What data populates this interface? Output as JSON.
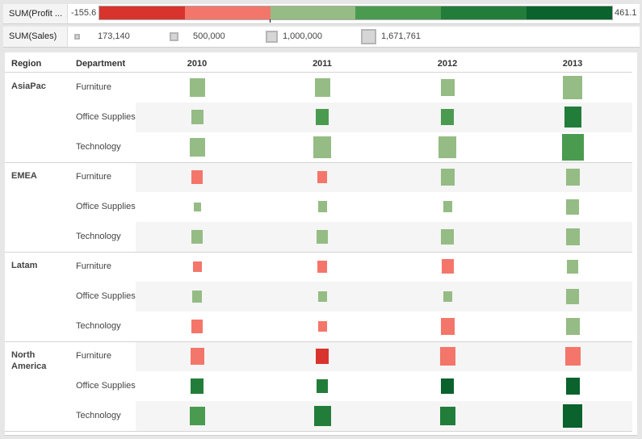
{
  "color_legend": {
    "label": "SUM(Profit ...",
    "min": "-155.6",
    "max": "461.1",
    "segments": [
      "#d8342d",
      "#f4766a",
      "#95bc84",
      "#4a9b50",
      "#237d3a",
      "#0a622c"
    ]
  },
  "size_legend": {
    "label": "SUM(Sales)",
    "items": [
      {
        "label": "173,140",
        "size": 7
      },
      {
        "label": "500,000",
        "size": 11
      },
      {
        "label": "1,000,000",
        "size": 15
      },
      {
        "label": "1,671,761",
        "size": 19
      }
    ]
  },
  "table": {
    "headers": {
      "region": "Region",
      "department": "Department"
    },
    "years": [
      "2010",
      "2011",
      "2012",
      "2013"
    ],
    "regions": [
      {
        "name": "AsiaPac",
        "departments": [
          "Furniture",
          "Office Supplies",
          "Technology"
        ]
      },
      {
        "name": "EMEA",
        "departments": [
          "Furniture",
          "Office Supplies",
          "Technology"
        ]
      },
      {
        "name": "Latam",
        "departments": [
          "Furniture",
          "Office Supplies",
          "Technology"
        ]
      },
      {
        "name": "North America",
        "departments": [
          "Furniture",
          "Office Supplies",
          "Technology"
        ]
      }
    ]
  },
  "chart_data": {
    "type": "heatmap",
    "title": "",
    "mark": "square",
    "color_measure": "SUM(Profit)",
    "color_range": [
      -155.6,
      461.1
    ],
    "size_measure": "SUM(Sales)",
    "size_range": [
      173140,
      1671761
    ],
    "columns": [
      "2010",
      "2011",
      "2012",
      "2013"
    ],
    "rows": [
      {
        "region": "AsiaPac",
        "department": "Furniture",
        "color": [
          "#95bc84",
          "#95bc84",
          "#95bc84",
          "#95bc84"
        ],
        "size": [
          23,
          23,
          21,
          29
        ]
      },
      {
        "region": "AsiaPac",
        "department": "Office Supplies",
        "color": [
          "#95bc84",
          "#4a9b50",
          "#4a9b50",
          "#237d3a"
        ],
        "size": [
          18,
          20,
          20,
          26
        ]
      },
      {
        "region": "AsiaPac",
        "department": "Technology",
        "color": [
          "#95bc84",
          "#95bc84",
          "#95bc84",
          "#4a9b50"
        ],
        "size": [
          23,
          27,
          27,
          33
        ]
      },
      {
        "region": "EMEA",
        "department": "Furniture",
        "color": [
          "#f4766a",
          "#f4766a",
          "#95bc84",
          "#95bc84"
        ],
        "size": [
          17,
          15,
          21,
          21
        ]
      },
      {
        "region": "EMEA",
        "department": "Office Supplies",
        "color": [
          "#95bc84",
          "#95bc84",
          "#95bc84",
          "#95bc84"
        ],
        "size": [
          11,
          14,
          14,
          19
        ]
      },
      {
        "region": "EMEA",
        "department": "Technology",
        "color": [
          "#95bc84",
          "#95bc84",
          "#95bc84",
          "#95bc84"
        ],
        "size": [
          17,
          17,
          19,
          21
        ]
      },
      {
        "region": "Latam",
        "department": "Furniture",
        "color": [
          "#f4766a",
          "#f4766a",
          "#f4766a",
          "#95bc84"
        ],
        "size": [
          13,
          15,
          18,
          17
        ]
      },
      {
        "region": "Latam",
        "department": "Office Supplies",
        "color": [
          "#95bc84",
          "#95bc84",
          "#95bc84",
          "#95bc84"
        ],
        "size": [
          15,
          13,
          13,
          19
        ]
      },
      {
        "region": "Latam",
        "department": "Technology",
        "color": [
          "#f4766a",
          "#f4766a",
          "#f4766a",
          "#95bc84"
        ],
        "size": [
          17,
          13,
          21,
          21
        ]
      },
      {
        "region": "North America",
        "department": "Furniture",
        "color": [
          "#f4766a",
          "#d8342d",
          "#f4766a",
          "#f4766a"
        ],
        "size": [
          21,
          19,
          23,
          23
        ]
      },
      {
        "region": "North America",
        "department": "Office Supplies",
        "color": [
          "#237d3a",
          "#237d3a",
          "#0a622c",
          "#0a622c"
        ],
        "size": [
          19,
          17,
          19,
          21
        ]
      },
      {
        "region": "North America",
        "department": "Technology",
        "color": [
          "#4a9b50",
          "#237d3a",
          "#237d3a",
          "#0a622c"
        ],
        "size": [
          23,
          25,
          23,
          29
        ]
      }
    ]
  }
}
